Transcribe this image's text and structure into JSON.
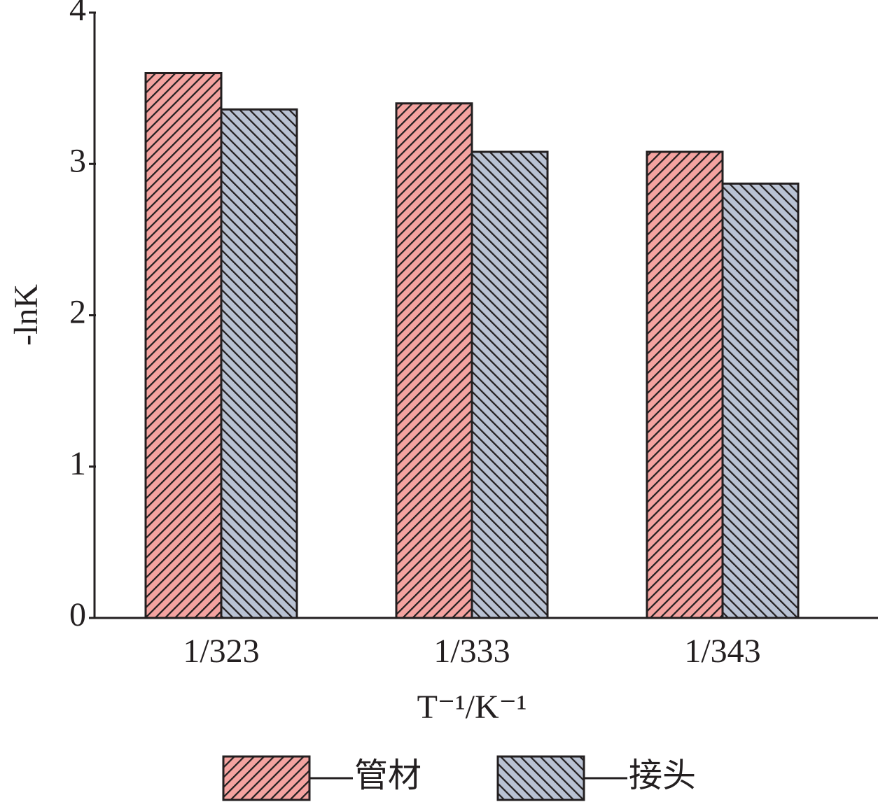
{
  "chart_data": {
    "type": "bar",
    "categories": [
      "1/323",
      "1/333",
      "1/343"
    ],
    "series": [
      {
        "name": "管材",
        "color": "#f4a3a0",
        "values": [
          3.6,
          3.4,
          3.08
        ]
      },
      {
        "name": "接头",
        "color": "#b9c2d3",
        "values": [
          3.36,
          3.08,
          2.87
        ]
      }
    ],
    "ylim": [
      0,
      4
    ],
    "yticks": [
      0,
      1,
      2,
      3,
      4
    ],
    "y_label": "-lnK",
    "x_label": "T⁻¹/K⁻¹",
    "legend": "bottom"
  }
}
